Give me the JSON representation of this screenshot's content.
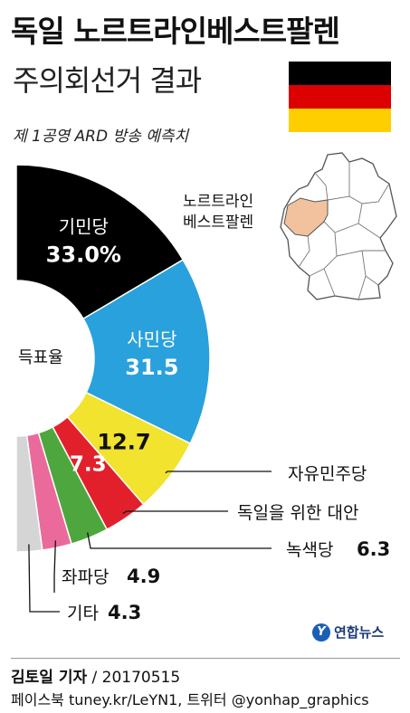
{
  "header": {
    "title": "독일 노르트라인베스트팔렌",
    "title2": "주의회선거 결과",
    "subtitle": "제 1공영 ARD 방송 예측치"
  },
  "flag": {
    "colors": [
      "#000000",
      "#dd0000",
      "#ffce00"
    ]
  },
  "map": {
    "label_line1": "노르트라인",
    "label_line2": "베스트팔렌",
    "highlight": "#f2c29e"
  },
  "chart_data": {
    "type": "pie",
    "center_label": "득표율",
    "series": [
      {
        "name": "기민당",
        "value": 33.0,
        "display": "33.0%",
        "color": "#000000"
      },
      {
        "name": "사민당",
        "value": 31.5,
        "display": "31.5",
        "color": "#28a1dc"
      },
      {
        "name": "자유민주당",
        "value": 12.7,
        "display": "12.7",
        "color": "#f1e32e"
      },
      {
        "name": "독일을 위한 대안",
        "value": 7.3,
        "display": "7.3",
        "color": "#e2202c"
      },
      {
        "name": "녹색당",
        "value": 6.3,
        "display": "6.3",
        "color": "#4ea73e"
      },
      {
        "name": "좌파당",
        "value": 4.9,
        "display": "4.9",
        "color": "#ea6b9b"
      },
      {
        "name": "기타",
        "value": 4.3,
        "display": "4.3",
        "color": "#d5d5d5"
      }
    ]
  },
  "footer": {
    "reporter": "김토일 기자",
    "date": " / 20170515",
    "social": "페이스북 tuney.kr/LeYN1, 트위터 @yonhap_graphics",
    "logo": "연합뉴스",
    "logo_mark": "Y"
  }
}
